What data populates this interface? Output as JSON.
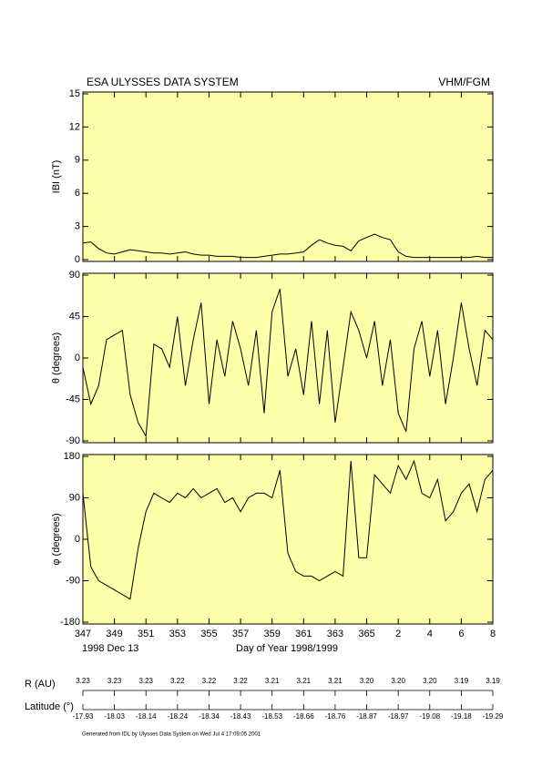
{
  "header": {
    "title": "ESA ULYSSES DATA SYSTEM",
    "instrument": "VHM/FGM"
  },
  "chart_data": [
    {
      "type": "line",
      "ylabel": "IBI (nT)",
      "x": [
        347,
        347.5,
        348,
        348.5,
        349,
        349.5,
        350,
        350.5,
        351,
        351.5,
        352,
        352.5,
        353,
        353.5,
        354,
        354.5,
        355,
        355.5,
        356,
        356.5,
        357,
        357.5,
        358,
        358.5,
        359,
        359.5,
        360,
        360.5,
        361,
        361.5,
        362,
        362.5,
        363,
        363.5,
        364,
        364.5,
        365,
        365.5,
        366,
        366.5,
        367,
        367.5,
        368,
        368.5,
        369,
        369.5,
        370,
        370.5,
        371,
        371.5,
        372,
        372.5,
        373
      ],
      "series": [
        {
          "color": "#000000",
          "values": [
            1.5,
            1.6,
            1.0,
            0.6,
            0.5,
            0.7,
            0.9,
            0.8,
            0.7,
            0.6,
            0.6,
            0.5,
            0.6,
            0.7,
            0.5,
            0.4,
            0.4,
            0.3,
            0.3,
            0.3,
            0.2,
            0.2,
            0.2,
            0.3,
            0.4,
            0.5,
            0.5,
            0.6,
            0.7,
            1.3,
            1.8,
            1.5,
            1.3,
            1.2,
            0.8,
            1.7,
            2.0,
            2.3,
            2.0,
            1.8,
            0.7,
            0.3,
            0.2,
            0.2,
            0.2,
            0.2,
            0.2,
            0.2,
            0.2,
            0.2,
            0.3,
            0.2,
            0.2
          ]
        }
      ],
      "xlim": [
        347,
        373
      ],
      "xticks": [
        347,
        349,
        351,
        353,
        355,
        357,
        359,
        361,
        363,
        365,
        {
          "value": 367,
          "label": "2"
        },
        {
          "value": 369,
          "label": "4"
        },
        {
          "value": 371,
          "label": "6"
        },
        {
          "value": 373,
          "label": "8"
        }
      ],
      "ylim": [
        0,
        15
      ],
      "yticks": [
        0,
        3,
        6,
        9,
        12,
        15
      ]
    },
    {
      "type": "line",
      "ylabel": "θ (degrees)",
      "x": [
        347,
        347.5,
        348,
        348.5,
        349,
        349.5,
        350,
        350.5,
        351,
        351.5,
        352,
        352.5,
        353,
        353.5,
        354,
        354.5,
        355,
        355.5,
        356,
        356.5,
        357,
        357.5,
        358,
        358.5,
        359,
        359.5,
        360,
        360.5,
        361,
        361.5,
        362,
        362.5,
        363,
        363.5,
        364,
        364.5,
        365,
        365.5,
        366,
        366.5,
        367,
        367.5,
        368,
        368.5,
        369,
        369.5,
        370,
        370.5,
        371,
        371.5,
        372,
        372.5,
        373
      ],
      "series": [
        {
          "color": "#000000",
          "values": [
            -10,
            -50,
            -30,
            20,
            25,
            30,
            -40,
            -70,
            -85,
            15,
            10,
            -10,
            45,
            -30,
            20,
            60,
            -50,
            20,
            -20,
            40,
            10,
            -30,
            30,
            -60,
            50,
            75,
            -20,
            10,
            -40,
            40,
            -50,
            30,
            -70,
            -10,
            50,
            30,
            0,
            40,
            -30,
            20,
            -60,
            -80,
            10,
            40,
            -20,
            30,
            -50,
            0,
            60,
            10,
            -30,
            30,
            20
          ]
        }
      ],
      "xlim": [
        347,
        373
      ],
      "xticks": [
        347,
        349,
        351,
        353,
        355,
        357,
        359,
        361,
        363,
        365,
        {
          "value": 367,
          "label": "2"
        },
        {
          "value": 369,
          "label": "4"
        },
        {
          "value": 371,
          "label": "6"
        },
        {
          "value": 373,
          "label": "8"
        }
      ],
      "ylim": [
        -90,
        90
      ],
      "yticks": [
        -90,
        -45,
        0,
        45,
        90
      ]
    },
    {
      "type": "line",
      "ylabel": "φ (degrees)",
      "xlabel": "Day of Year 1998/1999",
      "start_date": "1998 Dec 13",
      "x": [
        347,
        347.5,
        348,
        348.5,
        349,
        349.5,
        350,
        350.5,
        351,
        351.5,
        352,
        352.5,
        353,
        353.5,
        354,
        354.5,
        355,
        355.5,
        356,
        356.5,
        357,
        357.5,
        358,
        358.5,
        359,
        359.5,
        360,
        360.5,
        361,
        361.5,
        362,
        362.5,
        363,
        363.5,
        364,
        364.5,
        365,
        365.5,
        366,
        366.5,
        367,
        367.5,
        368,
        368.5,
        369,
        369.5,
        370,
        370.5,
        371,
        371.5,
        372,
        372.5,
        373
      ],
      "series": [
        {
          "color": "#000000",
          "values": [
            100,
            -60,
            -90,
            -100,
            -110,
            -120,
            -130,
            -20,
            60,
            100,
            90,
            80,
            100,
            90,
            110,
            90,
            100,
            110,
            80,
            90,
            60,
            90,
            100,
            100,
            90,
            150,
            -30,
            -70,
            -80,
            -80,
            -90,
            -80,
            -70,
            -80,
            170,
            -40,
            -40,
            140,
            120,
            100,
            160,
            130,
            170,
            100,
            90,
            130,
            40,
            60,
            100,
            120,
            60,
            130,
            150
          ]
        }
      ],
      "xlim": [
        347,
        373
      ],
      "xticks": [
        347,
        349,
        351,
        353,
        355,
        357,
        359,
        361,
        363,
        365,
        {
          "value": 367,
          "label": "2"
        },
        {
          "value": 369,
          "label": "4"
        },
        {
          "value": 371,
          "label": "6"
        },
        {
          "value": 373,
          "label": "8"
        }
      ],
      "ylim": [
        -180,
        180
      ],
      "yticks": [
        -180,
        -90,
        0,
        90,
        180
      ]
    }
  ],
  "orbit": {
    "r_label": "R (AU)",
    "r_values": [
      "3.23",
      "3.23",
      "3.23",
      "3.22",
      "3.22",
      "3.22",
      "3.21",
      "3.21",
      "3.21",
      "3.20",
      "3.20",
      "3.20",
      "3.19",
      "3.19"
    ],
    "lat_label": "Latitude (°)",
    "lat_values": [
      "-17.93",
      "-18.03",
      "-18.14",
      "-18.24",
      "-18.34",
      "-18.43",
      "-18.53",
      "-18.66",
      "-18.76",
      "-18.87",
      "-18.97",
      "-19.08",
      "-19.18",
      "-19.29"
    ]
  },
  "footer": "Generated from IDL by Ulysses Data System on Wed Jul  4 17:09:05 2001"
}
